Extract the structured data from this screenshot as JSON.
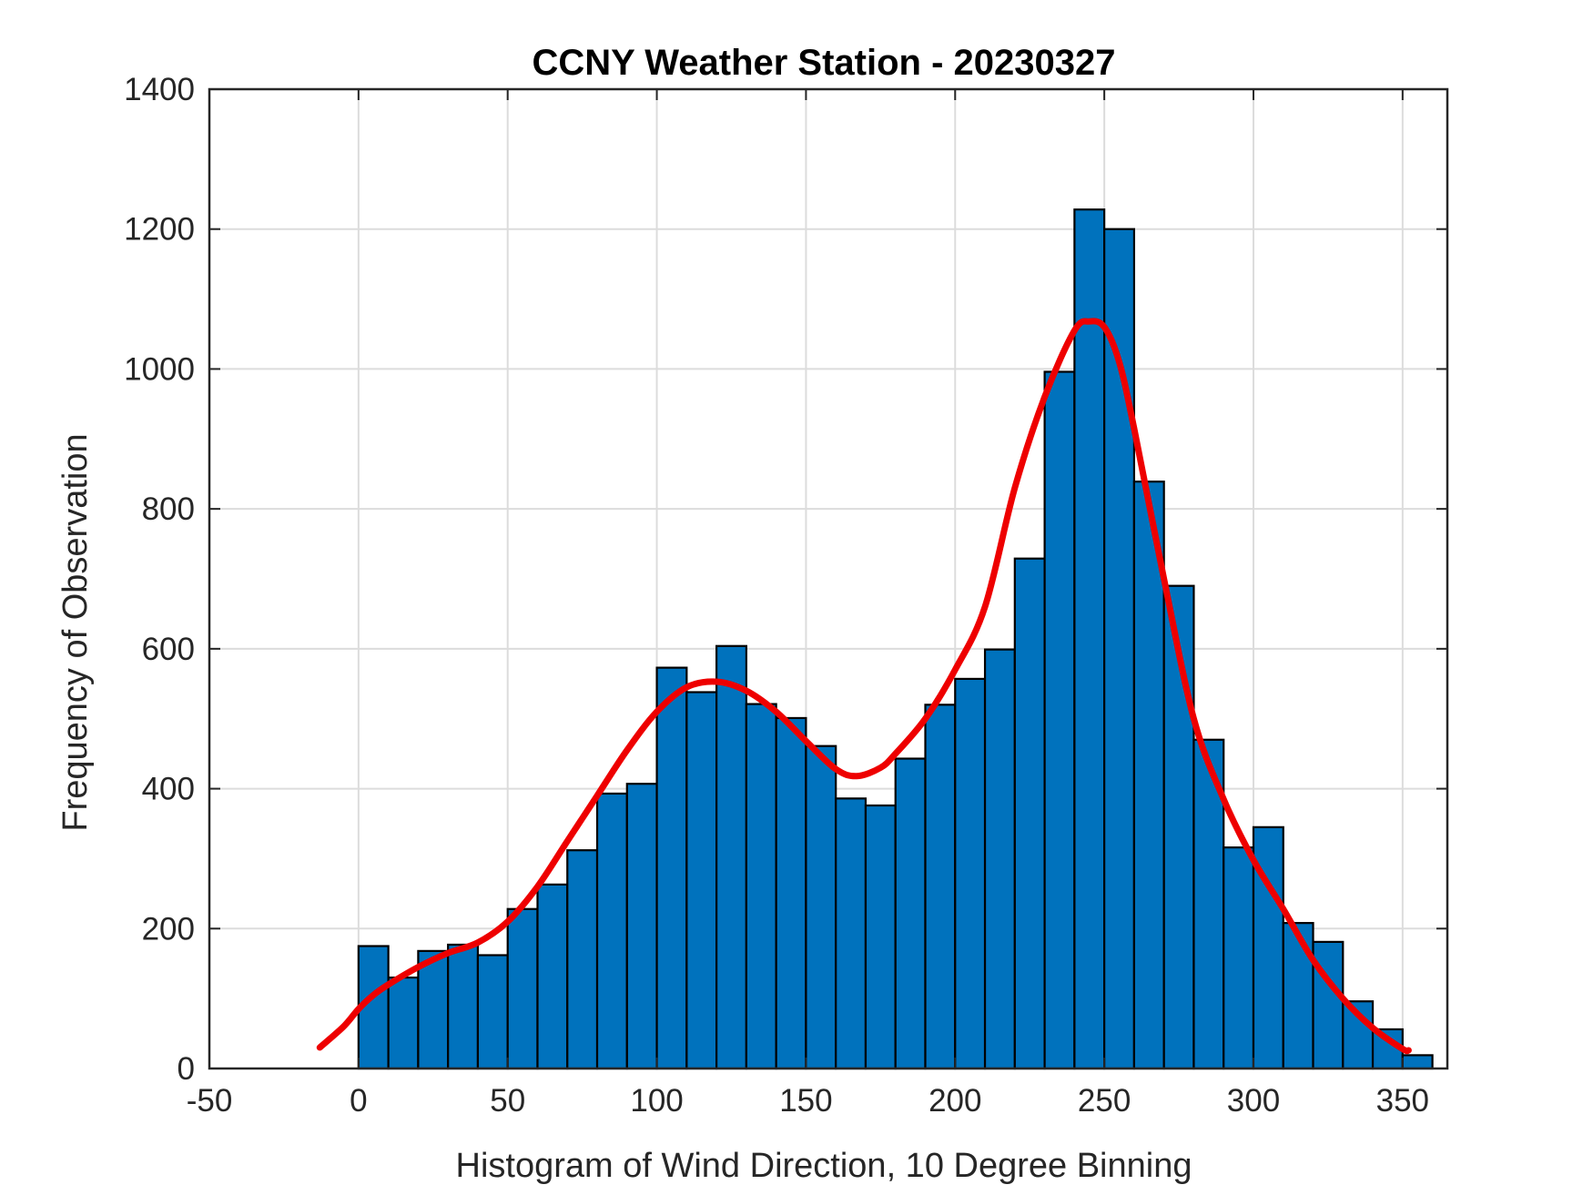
{
  "chart_data": {
    "type": "bar",
    "title": "CCNY Weather Station - 20230327",
    "xlabel": "Histogram of Wind Direction, 10 Degree Binning",
    "ylabel": "Frequency of Observation",
    "xlim": [
      -50,
      365
    ],
    "ylim": [
      0,
      1400
    ],
    "xticks": [
      -50,
      0,
      50,
      100,
      150,
      200,
      250,
      300,
      350
    ],
    "yticks": [
      0,
      200,
      400,
      600,
      800,
      1000,
      1200,
      1400
    ],
    "grid": true,
    "bin_width": 10,
    "bins": [
      {
        "start": 0,
        "value": 175
      },
      {
        "start": 10,
        "value": 130
      },
      {
        "start": 20,
        "value": 168
      },
      {
        "start": 30,
        "value": 177
      },
      {
        "start": 40,
        "value": 162
      },
      {
        "start": 50,
        "value": 228
      },
      {
        "start": 60,
        "value": 263
      },
      {
        "start": 70,
        "value": 312
      },
      {
        "start": 80,
        "value": 393
      },
      {
        "start": 90,
        "value": 407
      },
      {
        "start": 100,
        "value": 573
      },
      {
        "start": 110,
        "value": 538
      },
      {
        "start": 120,
        "value": 604
      },
      {
        "start": 130,
        "value": 521
      },
      {
        "start": 140,
        "value": 501
      },
      {
        "start": 150,
        "value": 461
      },
      {
        "start": 160,
        "value": 386
      },
      {
        "start": 170,
        "value": 376
      },
      {
        "start": 180,
        "value": 443
      },
      {
        "start": 190,
        "value": 520
      },
      {
        "start": 200,
        "value": 557
      },
      {
        "start": 210,
        "value": 599
      },
      {
        "start": 220,
        "value": 729
      },
      {
        "start": 230,
        "value": 996
      },
      {
        "start": 240,
        "value": 1228
      },
      {
        "start": 250,
        "value": 1200
      },
      {
        "start": 260,
        "value": 839
      },
      {
        "start": 270,
        "value": 690
      },
      {
        "start": 280,
        "value": 470
      },
      {
        "start": 290,
        "value": 316
      },
      {
        "start": 300,
        "value": 345
      },
      {
        "start": 310,
        "value": 208
      },
      {
        "start": 320,
        "value": 181
      },
      {
        "start": 330,
        "value": 96
      },
      {
        "start": 340,
        "value": 56
      },
      {
        "start": 350,
        "value": 19
      }
    ],
    "fit_curve": {
      "name": "density fit",
      "x": [
        -13,
        -5,
        0,
        5,
        10,
        20,
        30,
        40,
        50,
        60,
        70,
        80,
        90,
        100,
        110,
        120,
        130,
        140,
        150,
        160,
        167,
        175,
        180,
        190,
        200,
        210,
        220,
        230,
        240,
        245,
        250,
        255,
        260,
        270,
        280,
        290,
        300,
        310,
        320,
        330,
        340,
        350,
        352
      ],
      "y": [
        30,
        60,
        85,
        105,
        120,
        145,
        165,
        180,
        210,
        260,
        325,
        390,
        455,
        510,
        545,
        553,
        540,
        510,
        468,
        428,
        418,
        430,
        450,
        500,
        570,
        660,
        830,
        960,
        1055,
        1068,
        1060,
        1010,
        915,
        700,
        500,
        385,
        298,
        228,
        155,
        100,
        58,
        28,
        26
      ]
    },
    "colors": {
      "bar_fill": "#0072BD",
      "bar_edge": "#000000",
      "curve": "#ee0000"
    }
  }
}
